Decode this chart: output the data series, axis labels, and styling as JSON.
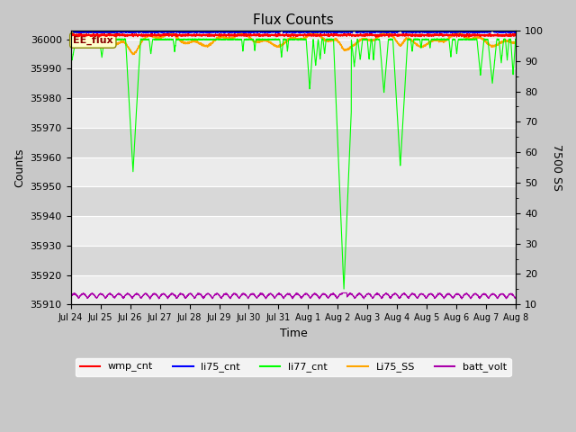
{
  "title": "Flux Counts",
  "xlabel": "Time",
  "ylabel": "Counts",
  "ylabel2": "7500 SS",
  "annotation": "EE_flux",
  "ylim_left": [
    35910,
    36003
  ],
  "ylim_right": [
    10,
    100
  ],
  "yticks_left": [
    35910,
    35920,
    35930,
    35940,
    35950,
    35960,
    35970,
    35980,
    35990,
    36000
  ],
  "yticks_right": [
    10,
    20,
    30,
    40,
    50,
    60,
    70,
    80,
    90,
    100
  ],
  "xtick_labels": [
    "Jul 24",
    "Jul 25",
    "Jul 26",
    "Jul 27",
    "Jul 28",
    "Jul 29",
    "Jul 30",
    "Jul 31",
    "Aug 1",
    "Aug 2",
    "Aug 3",
    "Aug 4",
    "Aug 5",
    "Aug 6",
    "Aug 7",
    "Aug 8"
  ],
  "colors": {
    "wmp_cnt": "#ff0000",
    "li75_cnt": "#0000ff",
    "li77_cnt": "#00ff00",
    "Li75_SS": "#ffa500",
    "batt_volt": "#aa00aa"
  },
  "background_color": "#c8c8c8",
  "plot_bg_light": "#ebebeb",
  "plot_bg_dark": "#d8d8d8",
  "grid_color": "#ffffff",
  "figsize": [
    6.4,
    4.8
  ],
  "dpi": 100
}
